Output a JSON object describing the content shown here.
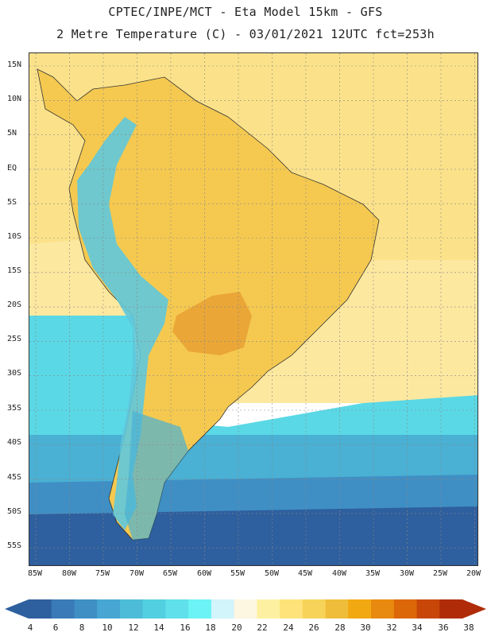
{
  "title_line1": "CPTEC/INPE/MCT -  Eta Model 15km - GFS",
  "title_line2": "2 Metre Temperature (C) - 03/01/2021 12UTC fct=253h",
  "lat_labels": [
    "15N",
    "10N",
    "5N",
    "EQ",
    "5S",
    "10S",
    "15S",
    "20S",
    "25S",
    "30S",
    "35S",
    "40S",
    "45S",
    "50S",
    "55S"
  ],
  "lon_labels": [
    "85W",
    "80W",
    "75W",
    "70W",
    "65W",
    "60W",
    "55W",
    "50W",
    "45W",
    "40W",
    "35W",
    "30W",
    "25W",
    "20W"
  ],
  "colorbar": {
    "labels": [
      "4",
      "6",
      "8",
      "10",
      "12",
      "14",
      "16",
      "18",
      "20",
      "22",
      "24",
      "26",
      "28",
      "30",
      "32",
      "34",
      "36",
      "38"
    ],
    "colors": [
      "#2e5f9e",
      "#3a7ab8",
      "#3f8fc4",
      "#47a7d2",
      "#4dbcd9",
      "#52cfe0",
      "#5fe0ea",
      "#6cf3f5",
      "#d2f4fb",
      "#fdf6e0",
      "#fdf1a1",
      "#fde37a",
      "#f8d35a",
      "#f0bd3a",
      "#f2a810",
      "#e88a10",
      "#dc6708",
      "#c84708",
      "#b02c08"
    ],
    "left_arrow_color": "#2e5f9e",
    "right_arrow_color": "#b02c08"
  },
  "map_colors": {
    "ocean_north": "#fbe28a",
    "ocean_tropic": "#fde8a0",
    "continent_warm": "#f5c950",
    "continent_hot": "#e8a033",
    "andes": "#5fc8dc",
    "ocean_cool": "#5ad8e6",
    "ocean_cold": "#4ab0d4",
    "ocean_colder": "#3f8fc4",
    "ocean_coldest": "#2e5f9e",
    "grid_color": "#888888"
  }
}
